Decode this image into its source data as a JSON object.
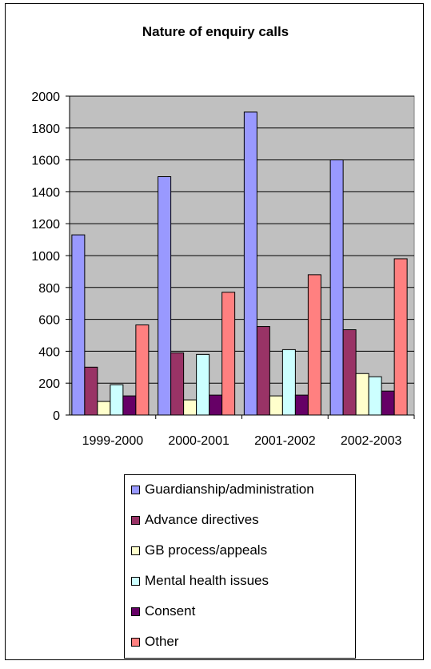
{
  "chart_data": {
    "type": "bar",
    "title": "Nature of enquiry calls",
    "xlabel": "",
    "ylabel": "",
    "ylim": [
      0,
      2000
    ],
    "yticks": [
      0,
      200,
      400,
      600,
      800,
      1000,
      1200,
      1400,
      1600,
      1800,
      2000
    ],
    "grid": true,
    "legend_position": "bottom",
    "plot_background": "#c0c0c0",
    "categories": [
      "1999-2000",
      "2000-2001",
      "2001-2002",
      "2002-2003"
    ],
    "series": [
      {
        "name": "Guardianship/administration",
        "color": "#9999ff",
        "values": [
          1130,
          1495,
          1900,
          1600
        ]
      },
      {
        "name": "Advance directives",
        "color": "#993366",
        "values": [
          300,
          390,
          555,
          535
        ]
      },
      {
        "name": "GB process/appeals",
        "color": "#ffffcc",
        "values": [
          85,
          95,
          120,
          260
        ]
      },
      {
        "name": "Mental health issues",
        "color": "#ccffff",
        "values": [
          190,
          380,
          410,
          240
        ]
      },
      {
        "name": "Consent",
        "color": "#660066",
        "values": [
          120,
          125,
          125,
          150
        ]
      },
      {
        "name": "Other",
        "color": "#ff8080",
        "values": [
          565,
          770,
          880,
          980
        ]
      }
    ]
  }
}
